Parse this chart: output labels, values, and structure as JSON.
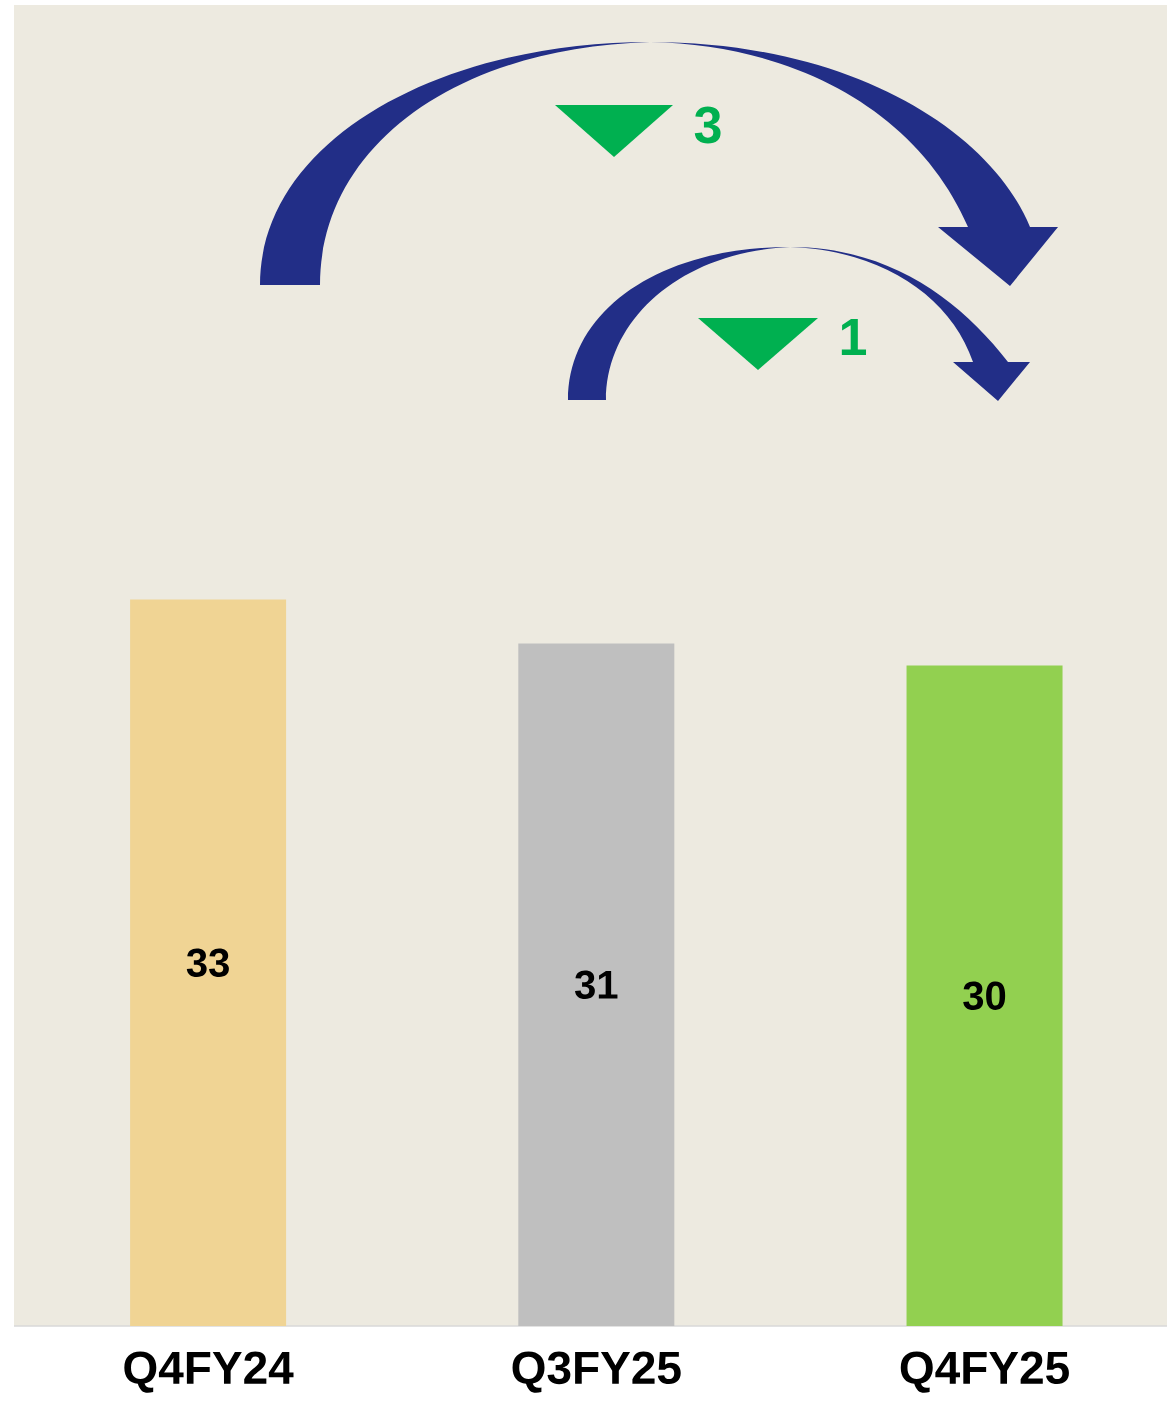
{
  "chart_data": {
    "type": "bar",
    "categories": [
      "Q4FY24",
      "Q3FY25",
      "Q4FY25"
    ],
    "values": [
      33,
      31,
      30
    ],
    "colors": [
      "#f0d494",
      "#bfbfbf",
      "#92d050"
    ],
    "ylim": [
      0,
      60
    ],
    "tick_labels": "x",
    "data_labels": true,
    "annotations": [
      "3",
      "1"
    ]
  }
}
